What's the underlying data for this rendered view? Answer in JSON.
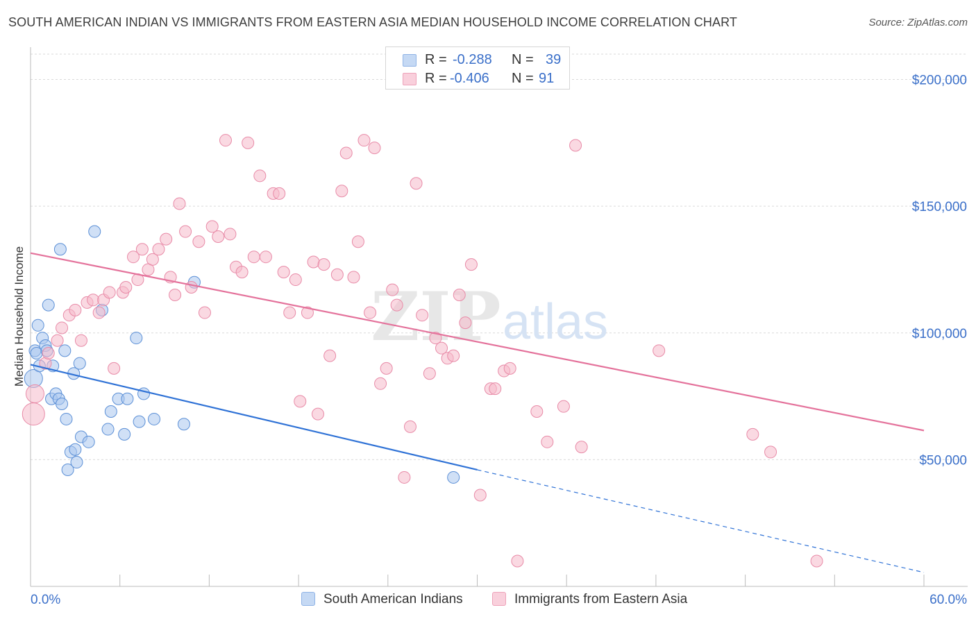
{
  "header": {
    "title": "SOUTH AMERICAN INDIAN VS IMMIGRANTS FROM EASTERN ASIA MEDIAN HOUSEHOLD INCOME CORRELATION CHART",
    "source": "Source: ZipAtlas.com"
  },
  "stats_legend": {
    "rows": [
      {
        "r_label": "R =",
        "r_value": "-0.288",
        "n_label": "N =",
        "n_value": "39",
        "color": "#a9c7ee"
      },
      {
        "r_label": "R =",
        "r_value": "-0.406",
        "n_label": "N =",
        "n_value": "91",
        "color": "#f6b9cb"
      }
    ]
  },
  "watermark": {
    "zip": "ZIP",
    "atlas": "atlas"
  },
  "colors": {
    "blue_fill": "#a9c7ee",
    "blue_stroke": "#5b8fd6",
    "blue_line": "#2f72d6",
    "pink_fill": "#f6b9cb",
    "pink_stroke": "#e88aa7",
    "pink_line": "#e4729b",
    "tick_label": "#3a6fc9",
    "grid": "#d9d9d9"
  },
  "chart_data": {
    "type": "scatter",
    "title": "SOUTH AMERICAN INDIAN VS IMMIGRANTS FROM EASTERN ASIA MEDIAN HOUSEHOLD INCOME CORRELATION CHART",
    "xlabel": "",
    "ylabel": "Median Household Income",
    "xlim": [
      0,
      60
    ],
    "ylim": [
      0,
      210000
    ],
    "x_tick_labels": [
      "0.0%",
      "60.0%"
    ],
    "y_ticks": [
      50000,
      100000,
      150000,
      200000
    ],
    "y_tick_labels": [
      "$50,000",
      "$100,000",
      "$150,000",
      "$200,000"
    ],
    "grid": true,
    "legend_position": "bottom-center",
    "series": [
      {
        "name": "South American Indians",
        "color": "#a9c7ee",
        "points": [
          [
            0.2,
            82000
          ],
          [
            0.3,
            93000
          ],
          [
            0.4,
            92000
          ],
          [
            0.5,
            103000
          ],
          [
            0.6,
            87000
          ],
          [
            0.8,
            98000
          ],
          [
            1.0,
            95000
          ],
          [
            1.1,
            93000
          ],
          [
            1.2,
            111000
          ],
          [
            1.4,
            74000
          ],
          [
            1.5,
            87000
          ],
          [
            1.7,
            76000
          ],
          [
            1.9,
            74000
          ],
          [
            2.0,
            133000
          ],
          [
            2.1,
            72000
          ],
          [
            2.3,
            93000
          ],
          [
            2.4,
            66000
          ],
          [
            2.5,
            46000
          ],
          [
            2.7,
            53000
          ],
          [
            2.9,
            84000
          ],
          [
            3.0,
            54000
          ],
          [
            3.1,
            49000
          ],
          [
            3.3,
            88000
          ],
          [
            3.4,
            59000
          ],
          [
            3.9,
            57000
          ],
          [
            4.3,
            140000
          ],
          [
            4.8,
            109000
          ],
          [
            5.2,
            62000
          ],
          [
            5.4,
            69000
          ],
          [
            5.9,
            74000
          ],
          [
            6.3,
            60000
          ],
          [
            6.5,
            74000
          ],
          [
            7.1,
            98000
          ],
          [
            7.3,
            65000
          ],
          [
            7.6,
            76000
          ],
          [
            8.3,
            66000
          ],
          [
            10.3,
            64000
          ],
          [
            11.0,
            120000
          ],
          [
            28.4,
            43000
          ]
        ],
        "trend": {
          "x": [
            0,
            30
          ],
          "y": [
            87500,
            46000
          ]
        },
        "trend_extension": {
          "x": [
            30,
            60
          ],
          "y": [
            46000,
            5500
          ]
        }
      },
      {
        "name": "Immigrants from Eastern Asia",
        "color": "#f6b9cb",
        "points": [
          [
            0.2,
            68000
          ],
          [
            0.3,
            76000
          ],
          [
            1.0,
            88000
          ],
          [
            1.2,
            92000
          ],
          [
            1.8,
            97000
          ],
          [
            2.1,
            102000
          ],
          [
            2.6,
            107000
          ],
          [
            3.0,
            109000
          ],
          [
            3.4,
            97000
          ],
          [
            3.8,
            112000
          ],
          [
            4.2,
            113000
          ],
          [
            4.6,
            108000
          ],
          [
            4.9,
            113000
          ],
          [
            5.3,
            116000
          ],
          [
            5.6,
            86000
          ],
          [
            6.2,
            116000
          ],
          [
            6.4,
            118000
          ],
          [
            6.9,
            130000
          ],
          [
            7.2,
            121000
          ],
          [
            7.5,
            133000
          ],
          [
            7.9,
            125000
          ],
          [
            8.2,
            129000
          ],
          [
            8.6,
            133000
          ],
          [
            9.1,
            137000
          ],
          [
            9.4,
            122000
          ],
          [
            9.7,
            115000
          ],
          [
            10.0,
            151000
          ],
          [
            10.4,
            140000
          ],
          [
            10.8,
            118000
          ],
          [
            11.3,
            136000
          ],
          [
            11.7,
            108000
          ],
          [
            12.2,
            142000
          ],
          [
            12.6,
            138000
          ],
          [
            13.1,
            176000
          ],
          [
            13.4,
            139000
          ],
          [
            13.8,
            126000
          ],
          [
            14.2,
            124000
          ],
          [
            14.6,
            175000
          ],
          [
            15.0,
            130000
          ],
          [
            15.4,
            162000
          ],
          [
            15.8,
            130000
          ],
          [
            16.3,
            155000
          ],
          [
            16.7,
            155000
          ],
          [
            17.0,
            124000
          ],
          [
            17.4,
            108000
          ],
          [
            17.8,
            121000
          ],
          [
            18.1,
            73000
          ],
          [
            18.6,
            108000
          ],
          [
            19.0,
            128000
          ],
          [
            19.3,
            68000
          ],
          [
            19.7,
            127000
          ],
          [
            20.1,
            91000
          ],
          [
            20.6,
            123000
          ],
          [
            20.9,
            156000
          ],
          [
            21.2,
            171000
          ],
          [
            21.7,
            122000
          ],
          [
            22.0,
            136000
          ],
          [
            22.4,
            176000
          ],
          [
            22.8,
            108000
          ],
          [
            23.1,
            173000
          ],
          [
            23.5,
            80000
          ],
          [
            23.9,
            86000
          ],
          [
            24.3,
            117000
          ],
          [
            24.6,
            111000
          ],
          [
            25.1,
            43000
          ],
          [
            25.5,
            63000
          ],
          [
            25.9,
            159000
          ],
          [
            26.3,
            107000
          ],
          [
            26.8,
            84000
          ],
          [
            27.2,
            98000
          ],
          [
            27.6,
            94000
          ],
          [
            28.0,
            90000
          ],
          [
            28.4,
            91000
          ],
          [
            28.8,
            115000
          ],
          [
            29.2,
            104000
          ],
          [
            29.6,
            127000
          ],
          [
            30.2,
            36000
          ],
          [
            30.9,
            78000
          ],
          [
            31.2,
            78000
          ],
          [
            31.8,
            85000
          ],
          [
            32.2,
            86000
          ],
          [
            32.7,
            10000
          ],
          [
            34.0,
            69000
          ],
          [
            34.7,
            57000
          ],
          [
            35.8,
            71000
          ],
          [
            36.6,
            174000
          ],
          [
            37.0,
            55000
          ],
          [
            42.2,
            93000
          ],
          [
            48.5,
            60000
          ],
          [
            49.7,
            53000
          ],
          [
            52.8,
            10000
          ]
        ],
        "trend": {
          "x": [
            0,
            60
          ],
          "y": [
            131500,
            61500
          ]
        }
      }
    ]
  },
  "bottom_legend": {
    "items": [
      {
        "label": "South American Indians",
        "color": "#a9c7ee"
      },
      {
        "label": "Immigrants from Eastern Asia",
        "color": "#f6b9cb"
      }
    ]
  }
}
